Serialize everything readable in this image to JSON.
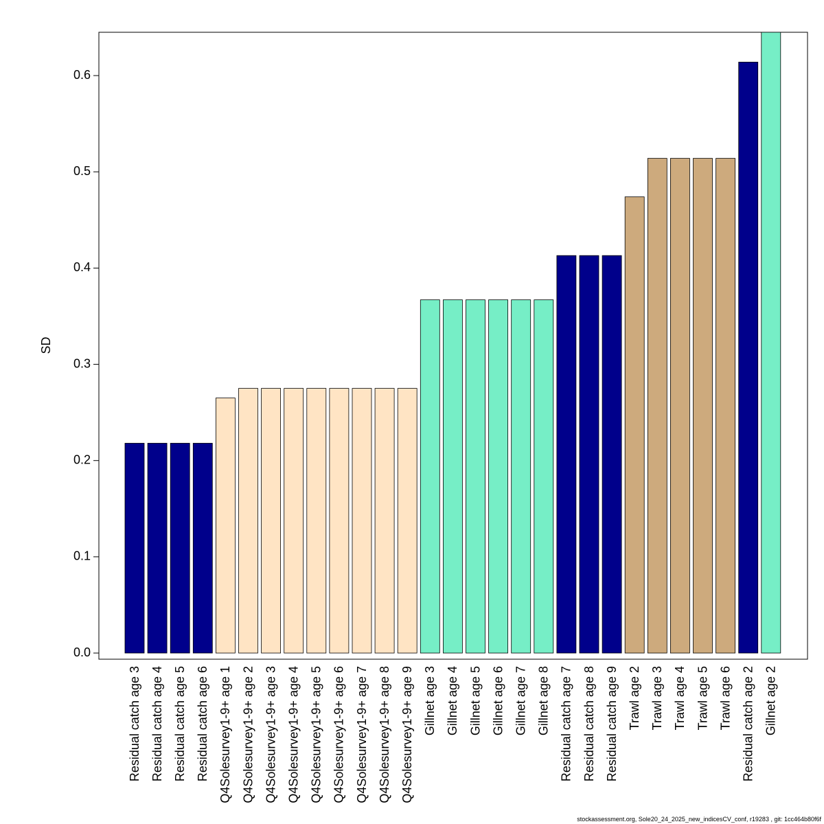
{
  "chart_data": {
    "type": "bar",
    "y_label": "SD",
    "footer": "stockassessment.org, Sole20_24_2025_new_indicesCV_conf, r19283 , git: 1cc464b80f6f",
    "categories": [
      "Residual catch age 3",
      "Residual catch age 4",
      "Residual catch age 5",
      "Residual catch age 6",
      "Q4Solesurvey1-9+ age 1",
      "Q4Solesurvey1-9+ age 2",
      "Q4Solesurvey1-9+ age 3",
      "Q4Solesurvey1-9+ age 4",
      "Q4Solesurvey1-9+ age 5",
      "Q4Solesurvey1-9+ age 6",
      "Q4Solesurvey1-9+ age 7",
      "Q4Solesurvey1-9+ age 8",
      "Q4Solesurvey1-9+ age 9",
      "Gillnet age 3",
      "Gillnet age 4",
      "Gillnet age 5",
      "Gillnet age 6",
      "Gillnet age 7",
      "Gillnet age 8",
      "Residual catch age 7",
      "Residual catch age 8",
      "Residual catch age 9",
      "Trawl age 2",
      "Trawl age 3",
      "Trawl age 4",
      "Trawl age 5",
      "Trawl age 6",
      "Residual catch age 2",
      "Gillnet age 2"
    ],
    "values": [
      0.218,
      0.218,
      0.218,
      0.218,
      0.265,
      0.275,
      0.275,
      0.275,
      0.275,
      0.275,
      0.275,
      0.275,
      0.275,
      0.367,
      0.367,
      0.367,
      0.367,
      0.367,
      0.367,
      0.413,
      0.413,
      0.413,
      0.474,
      0.514,
      0.514,
      0.514,
      0.514,
      0.614,
      0.645
    ],
    "colors": [
      "#00008b",
      "#00008b",
      "#00008b",
      "#00008b",
      "#ffe4c4",
      "#ffe4c4",
      "#ffe4c4",
      "#ffe4c4",
      "#ffe4c4",
      "#ffe4c4",
      "#ffe4c4",
      "#ffe4c4",
      "#ffe4c4",
      "#76eec6",
      "#76eec6",
      "#76eec6",
      "#76eec6",
      "#76eec6",
      "#76eec6",
      "#00008b",
      "#00008b",
      "#00008b",
      "#cdaa7d",
      "#cdaa7d",
      "#cdaa7d",
      "#cdaa7d",
      "#cdaa7d",
      "#00008b",
      "#76eec6"
    ],
    "ylim": [
      -0.0064,
      0.645
    ],
    "yticks": [
      {
        "value": 0,
        "label": "0.0"
      },
      0.1,
      0.2,
      0.3,
      0.4,
      0.5,
      0.6
    ]
  }
}
